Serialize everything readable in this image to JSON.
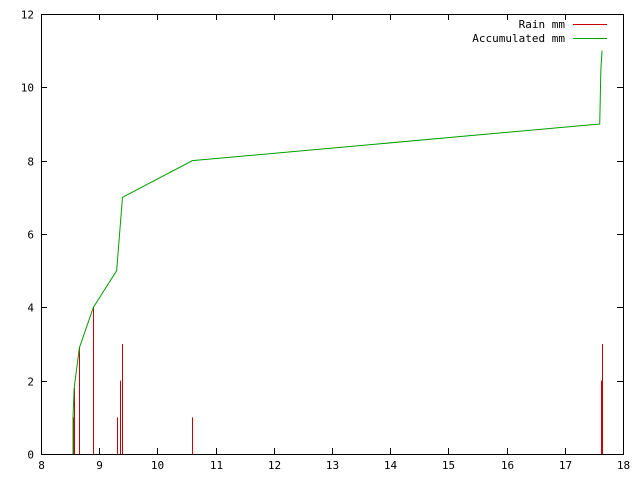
{
  "chart_data": {
    "type": "line",
    "title": "",
    "xlabel": "",
    "ylabel": "",
    "xlim": [
      8,
      18
    ],
    "ylim": [
      0,
      12
    ],
    "x_ticks": [
      8,
      9,
      10,
      11,
      12,
      13,
      14,
      15,
      16,
      17,
      18
    ],
    "y_ticks": [
      0,
      2,
      4,
      6,
      8,
      10,
      12
    ],
    "grid": false,
    "legend_position": "top-right",
    "series": [
      {
        "name": "Rain mm",
        "style": "impulses",
        "color": "#cc0000",
        "points": [
          {
            "x": 8.55,
            "y": 1
          },
          {
            "x": 8.57,
            "y": 1.8
          },
          {
            "x": 8.66,
            "y": 2.9
          },
          {
            "x": 8.9,
            "y": 4
          },
          {
            "x": 9.3,
            "y": 1
          },
          {
            "x": 9.36,
            "y": 2
          },
          {
            "x": 9.4,
            "y": 3
          },
          {
            "x": 10.6,
            "y": 1
          },
          {
            "x": 17.62,
            "y": 2
          },
          {
            "x": 17.64,
            "y": 3
          }
        ]
      },
      {
        "name": "Accumulated mm",
        "style": "line",
        "color": "#00a000",
        "points": [
          {
            "x": 8.55,
            "y": 0
          },
          {
            "x": 8.55,
            "y": 1
          },
          {
            "x": 8.57,
            "y": 1.8
          },
          {
            "x": 8.66,
            "y": 2.9
          },
          {
            "x": 8.9,
            "y": 4
          },
          {
            "x": 9.3,
            "y": 5
          },
          {
            "x": 9.4,
            "y": 7
          },
          {
            "x": 10.6,
            "y": 8
          },
          {
            "x": 17.6,
            "y": 9
          },
          {
            "x": 17.62,
            "y": 10.5
          },
          {
            "x": 17.64,
            "y": 11
          }
        ]
      }
    ]
  }
}
